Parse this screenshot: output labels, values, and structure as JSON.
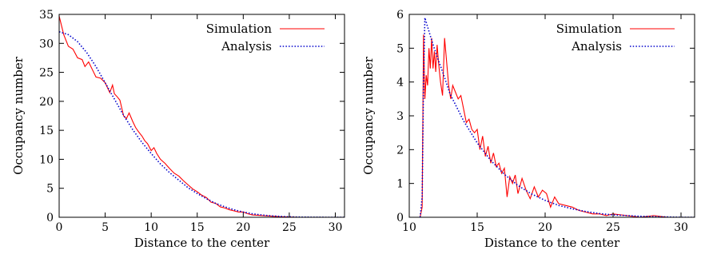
{
  "chart_data": [
    {
      "type": "line",
      "xlabel": "Distance to the center",
      "ylabel": "Occupancy number",
      "xlim": [
        0,
        31
      ],
      "ylim": [
        0,
        35
      ],
      "xticks": [
        0,
        5,
        10,
        15,
        20,
        25,
        30
      ],
      "yticks": [
        0,
        5,
        10,
        15,
        20,
        25,
        30,
        35
      ],
      "legend_position": "top-right",
      "series": [
        {
          "name": "Simulation",
          "color": "#ff0000",
          "style": "solid",
          "x": [
            0,
            0.5,
            1,
            1.5,
            2,
            2.5,
            2.8,
            3.2,
            3.6,
            4,
            4.5,
            5,
            5.5,
            5.8,
            6,
            6.3,
            6.6,
            7,
            7.3,
            7.6,
            8,
            8.3,
            8.6,
            9,
            9.3,
            9.6,
            10,
            10.3,
            10.6,
            11,
            11.5,
            12,
            12.5,
            13,
            13.5,
            14,
            14.5,
            15,
            15.5,
            16,
            16.5,
            17,
            17.5,
            18,
            18.5,
            19,
            19.5,
            20,
            20.5,
            21,
            22,
            23,
            24,
            25,
            26,
            27,
            28,
            29,
            30,
            31
          ],
          "y": [
            34.7,
            31.5,
            29.5,
            29,
            27.5,
            27.2,
            26,
            26.8,
            25.5,
            24.2,
            24,
            23.2,
            21.5,
            22.8,
            21.3,
            20.8,
            20.2,
            17.5,
            17,
            18,
            16.5,
            15.5,
            14.8,
            14,
            13.2,
            12.7,
            11.5,
            12,
            11,
            10,
            9.3,
            8.4,
            7.6,
            7.1,
            6.3,
            5.6,
            4.9,
            4.4,
            3.8,
            3.4,
            2.6,
            2.4,
            1.8,
            1.6,
            1.3,
            1.1,
            0.9,
            0.9,
            0.6,
            0.4,
            0.3,
            0.2,
            0.1,
            0.05,
            0,
            0,
            0,
            0,
            0,
            0
          ]
        },
        {
          "name": "Analysis",
          "color": "#0000cc",
          "style": "dotted",
          "x": [
            0,
            1,
            2,
            3,
            4,
            5,
            6,
            7,
            8,
            9,
            10,
            11,
            12,
            13,
            14,
            15,
            16,
            17,
            18,
            19,
            20,
            21,
            22,
            23,
            24,
            25,
            26,
            27,
            28,
            29,
            30,
            31
          ],
          "y": [
            32,
            31.5,
            30.3,
            28.4,
            26,
            23.2,
            20.4,
            17.6,
            15.1,
            12.9,
            11,
            9.2,
            7.7,
            6.4,
            5.1,
            4.1,
            3.2,
            2.4,
            1.8,
            1.3,
            0.9,
            0.6,
            0.4,
            0.25,
            0.15,
            0.08,
            0.04,
            0.02,
            0.01,
            0,
            0,
            0
          ]
        }
      ]
    },
    {
      "type": "line",
      "xlabel": "Distance to the center",
      "ylabel": "Occupancy number",
      "xlim": [
        10,
        31
      ],
      "ylim": [
        0,
        6
      ],
      "xticks": [
        10,
        15,
        20,
        25,
        30
      ],
      "yticks": [
        0,
        1,
        2,
        3,
        4,
        5,
        6
      ],
      "legend_position": "top-right",
      "series": [
        {
          "name": "Simulation",
          "color": "#ff0000",
          "style": "solid",
          "x": [
            10.8,
            10.95,
            11.05,
            11.15,
            11.25,
            11.35,
            11.45,
            11.55,
            11.65,
            11.75,
            11.85,
            11.95,
            12.05,
            12.15,
            12.3,
            12.45,
            12.6,
            12.75,
            12.9,
            13.05,
            13.2,
            13.4,
            13.6,
            13.8,
            14,
            14.2,
            14.4,
            14.6,
            14.8,
            15,
            15.2,
            15.4,
            15.6,
            15.8,
            16,
            16.2,
            16.4,
            16.6,
            16.8,
            17,
            17.2,
            17.4,
            17.6,
            17.8,
            18,
            18.3,
            18.6,
            18.9,
            19.2,
            19.5,
            19.8,
            20.1,
            20.4,
            20.7,
            21,
            21.5,
            22,
            22.5,
            23,
            23.5,
            24,
            24.5,
            25,
            26,
            27,
            28,
            29,
            30,
            31
          ],
          "y": [
            0,
            0.3,
            5.4,
            3.5,
            4.2,
            3.9,
            5.0,
            4.4,
            5.3,
            4.4,
            4.9,
            4.3,
            5.1,
            4.6,
            4.0,
            3.6,
            5.3,
            4.6,
            3.9,
            3.5,
            3.9,
            3.7,
            3.5,
            3.6,
            3.2,
            2.8,
            2.9,
            2.6,
            2.5,
            2.6,
            2.0,
            2.4,
            1.8,
            2.1,
            1.6,
            1.9,
            1.5,
            1.6,
            1.3,
            1.45,
            0.6,
            1.2,
            1.0,
            1.25,
            0.7,
            1.15,
            0.8,
            0.55,
            0.9,
            0.6,
            0.8,
            0.7,
            0.3,
            0.6,
            0.4,
            0.35,
            0.3,
            0.2,
            0.15,
            0.1,
            0.1,
            0.05,
            0.1,
            0.05,
            0,
            0.05,
            0,
            0,
            0
          ]
        },
        {
          "name": "Analysis",
          "color": "#0000cc",
          "style": "dotted",
          "x": [
            10.8,
            10.95,
            11.05,
            11.15,
            11.3,
            11.6,
            12,
            12.5,
            13,
            14,
            15,
            16,
            17,
            18,
            19,
            20,
            21,
            22,
            23,
            24,
            25,
            26,
            27,
            28,
            29,
            30,
            31
          ],
          "y": [
            0,
            0.6,
            4.0,
            5.9,
            5.7,
            5.3,
            4.8,
            4.25,
            3.65,
            2.85,
            2.2,
            1.68,
            1.27,
            0.94,
            0.69,
            0.5,
            0.35,
            0.25,
            0.17,
            0.11,
            0.07,
            0.05,
            0.03,
            0.02,
            0.01,
            0,
            0
          ]
        }
      ]
    }
  ]
}
